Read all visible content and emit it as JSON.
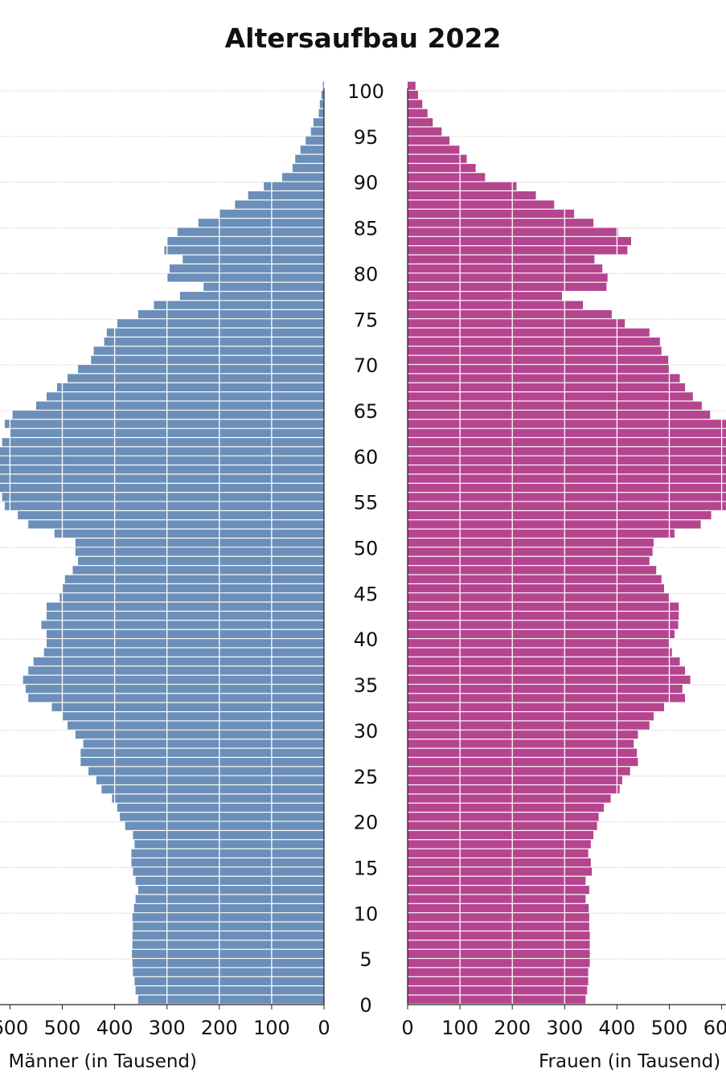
{
  "chart_data": {
    "type": "bar",
    "title": "Altersaufbau 2022",
    "left_axis_label": "Männer (in Tausend)",
    "right_axis_label": "Frauen (in Tausend)",
    "age_ticks": [
      0,
      5,
      10,
      15,
      20,
      25,
      30,
      35,
      40,
      45,
      50,
      55,
      60,
      65,
      70,
      75,
      80,
      85,
      90,
      95,
      100
    ],
    "x_ticks": [
      0,
      100,
      200,
      300,
      400,
      500,
      600
    ],
    "xlim": [
      0,
      620
    ],
    "grid": true,
    "colors": {
      "male": "#6b8fb9",
      "female": "#b5458f"
    },
    "series": [
      {
        "name": "Männer",
        "values": [
          355,
          360,
          362,
          365,
          366,
          367,
          366,
          366,
          365,
          366,
          363,
          360,
          355,
          360,
          365,
          368,
          368,
          362,
          365,
          380,
          390,
          395,
          405,
          425,
          435,
          450,
          465,
          465,
          460,
          475,
          490,
          500,
          520,
          565,
          570,
          575,
          565,
          555,
          535,
          530,
          530,
          540,
          530,
          530,
          505,
          500,
          495,
          480,
          470,
          475,
          475,
          515,
          565,
          585,
          610,
          615,
          620,
          620,
          620,
          620,
          620,
          615,
          600,
          610,
          595,
          550,
          530,
          510,
          490,
          470,
          445,
          440,
          420,
          415,
          395,
          355,
          325,
          275,
          230,
          300,
          295,
          270,
          305,
          300,
          280,
          240,
          200,
          170,
          145,
          115,
          80,
          60,
          55,
          45,
          35,
          25,
          20,
          10,
          8,
          5,
          2
        ],
        "values_comment_unused": null
      },
      {
        "name": "Frauen",
        "values": [
          340,
          343,
          345,
          345,
          348,
          348,
          348,
          348,
          347,
          347,
          346,
          340,
          347,
          340,
          352,
          350,
          345,
          350,
          355,
          362,
          365,
          375,
          388,
          405,
          410,
          425,
          440,
          438,
          432,
          440,
          462,
          470,
          490,
          530,
          525,
          540,
          530,
          520,
          505,
          500,
          510,
          517,
          518,
          518,
          500,
          490,
          485,
          475,
          462,
          468,
          470,
          510,
          560,
          580,
          615,
          620,
          620,
          620,
          620,
          620,
          620,
          620,
          620,
          610,
          578,
          562,
          545,
          530,
          520,
          500,
          498,
          485,
          482,
          462,
          415,
          390,
          335,
          295,
          380,
          382,
          372,
          357,
          420,
          427,
          402,
          355,
          318,
          280,
          245,
          208,
          148,
          130,
          113,
          100,
          80,
          65,
          48,
          38,
          28,
          20,
          15
        ]
      }
    ]
  }
}
